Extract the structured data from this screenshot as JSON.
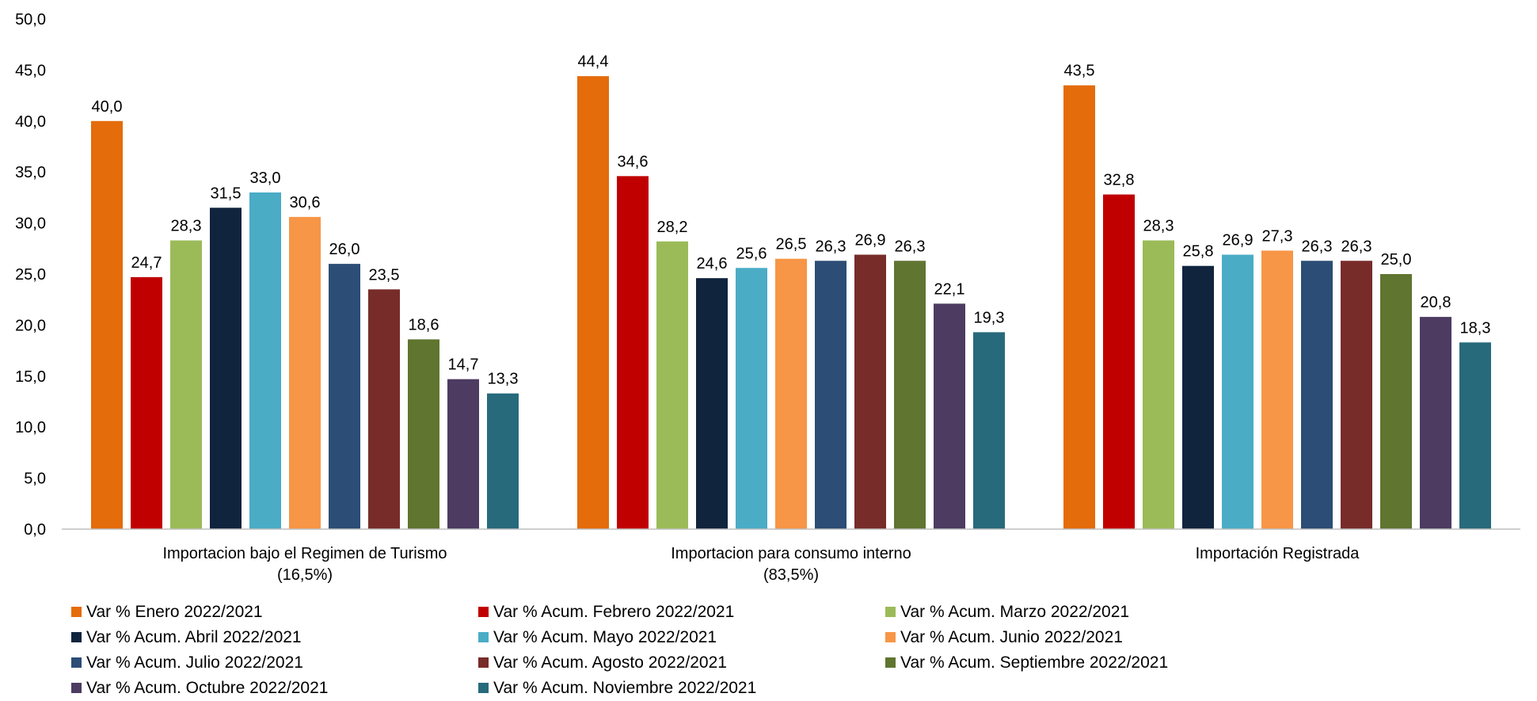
{
  "chart_data": {
    "type": "bar",
    "title": "",
    "xlabel": "",
    "ylabel": "",
    "ylim": [
      0,
      50
    ],
    "y_ticks": [
      0,
      5,
      10,
      15,
      20,
      25,
      30,
      35,
      40,
      45,
      50
    ],
    "grid": false,
    "legend_position": "bottom",
    "categories": [
      [
        "Importacion bajo el Regimen de Turismo",
        "(16,5%)"
      ],
      [
        "Importacion para consumo interno",
        "(83,5%)"
      ],
      [
        "Importación Registrada"
      ]
    ],
    "series": [
      {
        "name": "Var % Enero 2022/2021",
        "color": "#E46C0A",
        "values": [
          40.0,
          44.4,
          43.5
        ]
      },
      {
        "name": "Var % Acum. Febrero 2022/2021",
        "color": "#C00000",
        "values": [
          24.7,
          34.6,
          32.8
        ]
      },
      {
        "name": "Var % Acum. Marzo 2022/2021",
        "color": "#9BBB59",
        "values": [
          28.3,
          28.2,
          28.3
        ]
      },
      {
        "name": "Var % Acum. Abril 2022/2021",
        "color": "#10243E",
        "values": [
          31.5,
          24.6,
          25.8
        ]
      },
      {
        "name": "Var % Acum. Mayo 2022/2021",
        "color": "#4BACC6",
        "values": [
          33.0,
          25.6,
          26.9
        ]
      },
      {
        "name": "Var % Acum. Junio 2022/2021",
        "color": "#F79646",
        "values": [
          30.6,
          26.5,
          27.3
        ]
      },
      {
        "name": "Var % Acum. Julio 2022/2021",
        "color": "#2C4D75",
        "values": [
          26.0,
          26.3,
          26.3
        ]
      },
      {
        "name": "Var % Acum. Agosto 2022/2021",
        "color": "#772C2A",
        "values": [
          23.5,
          26.9,
          26.3
        ]
      },
      {
        "name": "Var % Acum. Septiembre 2022/2021",
        "color": "#5F7530",
        "values": [
          18.6,
          26.3,
          25.0
        ]
      },
      {
        "name": "Var % Acum. Octubre 2022/2021",
        "color": "#4D3B62",
        "values": [
          14.7,
          22.1,
          20.8
        ]
      },
      {
        "name": "Var % Acum. Noviembre 2022/2021",
        "color": "#276A7C",
        "values": [
          13.3,
          19.3,
          18.3
        ]
      }
    ]
  }
}
